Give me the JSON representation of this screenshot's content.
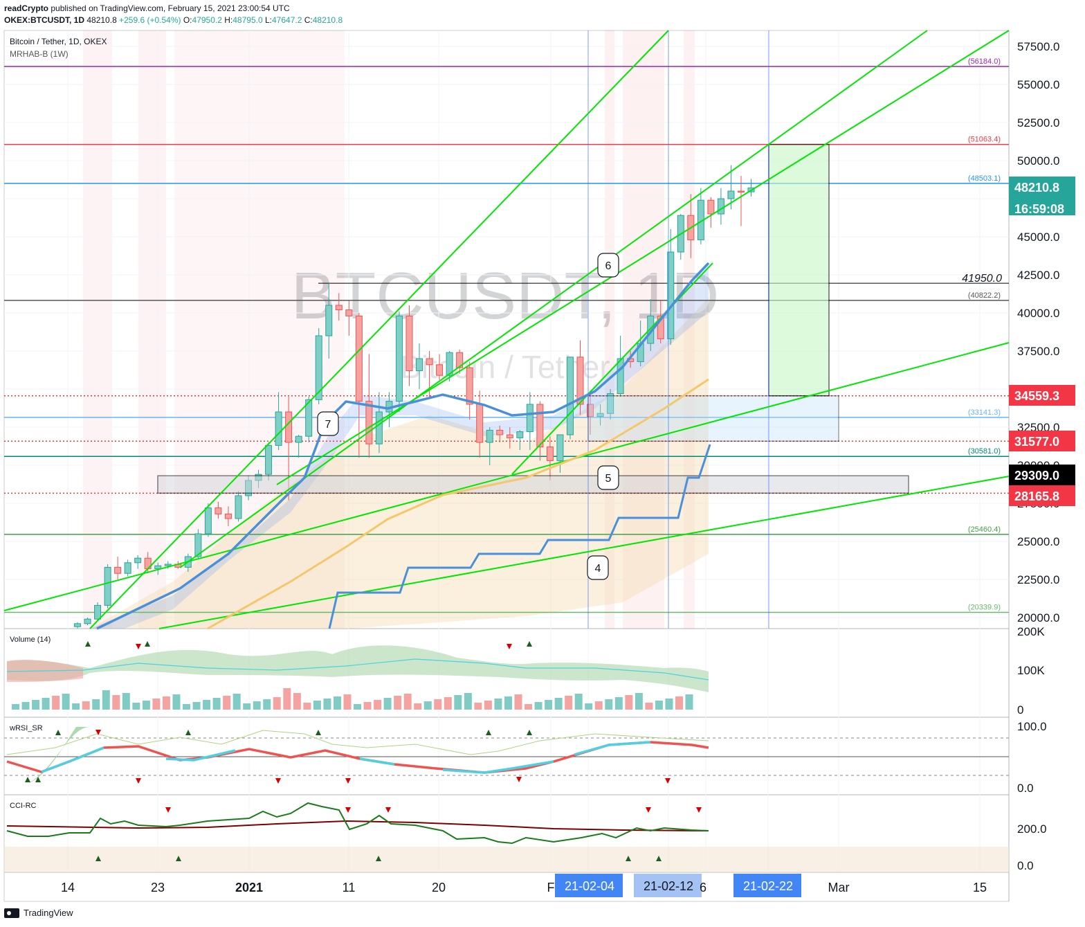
{
  "header": {
    "publisher": "readCrypto",
    "published_text": "published on TradingView.com, February 15, 2021 23:00:54 UTC",
    "symbol_line": "OKEX:BTCUSDT, 1D",
    "last": "48210.8",
    "change": "+259.6 (+0.54%)",
    "o_label": "O:",
    "o_val": "47950.2",
    "h_label": "H:",
    "h_val": "48795.0",
    "l_label": "L:",
    "l_val": "47647.2",
    "c_label": "C:",
    "c_val": "48210.8"
  },
  "legend": {
    "instrument": "Bitcoin / Tether, 1D, OKEX",
    "indicator": "MRHAB-B (1W)"
  },
  "watermark": {
    "big": "BTCUSDT, 1D",
    "small": "Bitcoin / Tether"
  },
  "panes": {
    "volume": "Volume (14)",
    "wrsi": "wRSI_SR",
    "cci": "CCI-RC"
  },
  "footer": {
    "brand": "TradingView"
  },
  "chart_data": {
    "type": "candlestick",
    "price_axis": {
      "ticks": [
        "57500.0",
        "55000.0",
        "52500.0",
        "50000.0",
        "47500.0",
        "45000.0",
        "42500.0",
        "40000.0",
        "37500.0",
        "35000.0",
        "32500.0",
        "30000.0",
        "27500.0",
        "25000.0",
        "22500.0",
        "20000.0"
      ],
      "ylim": [
        19500,
        58500
      ]
    },
    "time_axis": {
      "ticks": [
        "14",
        "23",
        "2021",
        "11",
        "20",
        "F",
        "21-02-04",
        "21-02-12",
        "6",
        "21-02-22",
        "Mar",
        "15"
      ]
    },
    "volume_axis": {
      "ticks": [
        "200K",
        "100K",
        "0"
      ]
    },
    "wrsi_axis": {
      "ticks": [
        "100.0",
        "0.0"
      ]
    },
    "cci_axis": {
      "ticks": [
        "200.0",
        "0.0"
      ]
    },
    "price_labels": [
      {
        "text": "48210.8",
        "sub": "16:59:08",
        "color": "#26a69a"
      },
      {
        "text": "34559.3",
        "color": "#f23645"
      },
      {
        "text": "31577.0",
        "color": "#f23645"
      },
      {
        "text": "29309.0",
        "color": "#000000"
      },
      {
        "text": "28165.8",
        "color": "#f23645"
      }
    ],
    "levels": [
      {
        "value": 56184.0,
        "label": "(56184.0)",
        "color": "#9c27b0"
      },
      {
        "value": 51063.4,
        "label": "(51063.4)",
        "color": "#f23645"
      },
      {
        "value": 48503.1,
        "label": "(48503.1)",
        "color": "#2196f3"
      },
      {
        "value": 40822.2,
        "label": "(40822.2)",
        "color": "#555555"
      },
      {
        "value": 33141.3,
        "label": "(33141.3)",
        "color": "#64b5f6"
      },
      {
        "value": 30581.0,
        "label": "(30581.0)",
        "color": "#00897b"
      },
      {
        "value": 25460.4,
        "label": "(25460.4)",
        "color": "#43a047"
      },
      {
        "value": 20339.9,
        "label": "(20339.9)",
        "color": "#66bb6a"
      }
    ],
    "annotation_41950": "41950.0",
    "wave_labels": [
      "7",
      "6",
      "5",
      "4"
    ],
    "candles": [
      [
        19400,
        19700,
        19300,
        19600
      ],
      [
        19600,
        20000,
        19500,
        19900
      ],
      [
        19900,
        21000,
        19800,
        20800
      ],
      [
        20800,
        23500,
        20600,
        23300
      ],
      [
        23300,
        24000,
        22500,
        22900
      ],
      [
        22900,
        23800,
        22700,
        23600
      ],
      [
        23600,
        24100,
        23200,
        23900
      ],
      [
        23900,
        24300,
        22900,
        23200
      ],
      [
        23200,
        23600,
        22800,
        23400
      ],
      [
        23400,
        23700,
        23200,
        23500
      ],
      [
        23500,
        23700,
        23200,
        23300
      ],
      [
        23300,
        24200,
        23000,
        24000
      ],
      [
        24000,
        25800,
        23900,
        25500
      ],
      [
        25500,
        27500,
        25300,
        27200
      ],
      [
        27200,
        27600,
        26500,
        26800
      ],
      [
        26800,
        27300,
        26000,
        26500
      ],
      [
        26500,
        28300,
        26300,
        28000
      ],
      [
        28000,
        29300,
        27700,
        29000
      ],
      [
        29000,
        29700,
        28500,
        29400
      ],
      [
        29400,
        31500,
        29000,
        31300
      ],
      [
        31300,
        34800,
        31000,
        33500
      ],
      [
        33500,
        34500,
        27700,
        31500
      ],
      [
        31500,
        32000,
        30500,
        31900
      ],
      [
        31900,
        34500,
        31500,
        34300
      ],
      [
        34300,
        39000,
        34000,
        38500
      ],
      [
        38500,
        41950,
        37000,
        40500
      ],
      [
        40500,
        41300,
        39500,
        40200
      ],
      [
        40200,
        40800,
        38500,
        39800
      ],
      [
        39800,
        40000,
        30500,
        34200
      ],
      [
        34200,
        37300,
        30500,
        31400
      ],
      [
        31400,
        34800,
        30800,
        33500
      ],
      [
        33500,
        34800,
        32500,
        34200
      ],
      [
        34200,
        40100,
        33500,
        39800
      ],
      [
        39800,
        40500,
        35200,
        36200
      ],
      [
        36200,
        38000,
        35000,
        37000
      ],
      [
        37000,
        37500,
        34500,
        36600
      ],
      [
        36600,
        37300,
        35600,
        35900
      ],
      [
        35900,
        37500,
        35500,
        37400
      ],
      [
        37400,
        37600,
        36000,
        36400
      ],
      [
        36400,
        36800,
        33000,
        34000
      ],
      [
        34000,
        34900,
        30500,
        31500
      ],
      [
        31500,
        32500,
        30000,
        32300
      ],
      [
        32300,
        32600,
        31500,
        32000
      ],
      [
        32000,
        32500,
        31100,
        31800
      ],
      [
        31800,
        32300,
        31000,
        32200
      ],
      [
        32200,
        34800,
        31000,
        34000
      ],
      [
        34000,
        34200,
        30300,
        31200
      ],
      [
        31200,
        31900,
        29000,
        30300
      ],
      [
        30300,
        32000,
        29500,
        32000
      ],
      [
        32000,
        37000,
        31700,
        37100
      ],
      [
        37100,
        38200,
        33300,
        34000
      ],
      [
        34000,
        34900,
        32000,
        33200
      ],
      [
        33200,
        34000,
        32600,
        33400
      ],
      [
        33400,
        35000,
        33000,
        34700
      ],
      [
        34700,
        38500,
        34500,
        37000
      ],
      [
        37000,
        37500,
        36400,
        36800
      ],
      [
        36800,
        39500,
        36500,
        38000
      ],
      [
        38000,
        40900,
        37500,
        39800
      ],
      [
        39800,
        40800,
        38000,
        38300
      ],
      [
        38300,
        45500,
        37900,
        44000
      ],
      [
        44000,
        46500,
        43500,
        46400
      ],
      [
        46400,
        47800,
        43600,
        44800
      ],
      [
        44800,
        48200,
        44500,
        47400
      ],
      [
        47400,
        47600,
        45600,
        46500
      ],
      [
        46500,
        48200,
        45800,
        47500
      ],
      [
        47500,
        49700,
        46800,
        48000
      ],
      [
        48000,
        49000,
        45700,
        47950
      ],
      [
        47950,
        48795,
        47647,
        48210.8
      ]
    ],
    "ma_blue_weekly": [
      [
        8,
        19400
      ],
      [
        33,
        21600
      ],
      [
        43,
        21600
      ],
      [
        48,
        23300
      ],
      [
        60,
        23300
      ],
      [
        67,
        24300
      ],
      [
        75,
        24300
      ],
      [
        79,
        25100
      ],
      [
        86,
        25100
      ],
      [
        89,
        26200
      ],
      [
        98,
        26200
      ],
      [
        102,
        28300
      ],
      [
        104,
        28300
      ],
      [
        106,
        31200
      ]
    ],
    "volume_trend_label": "Volume (14)"
  }
}
